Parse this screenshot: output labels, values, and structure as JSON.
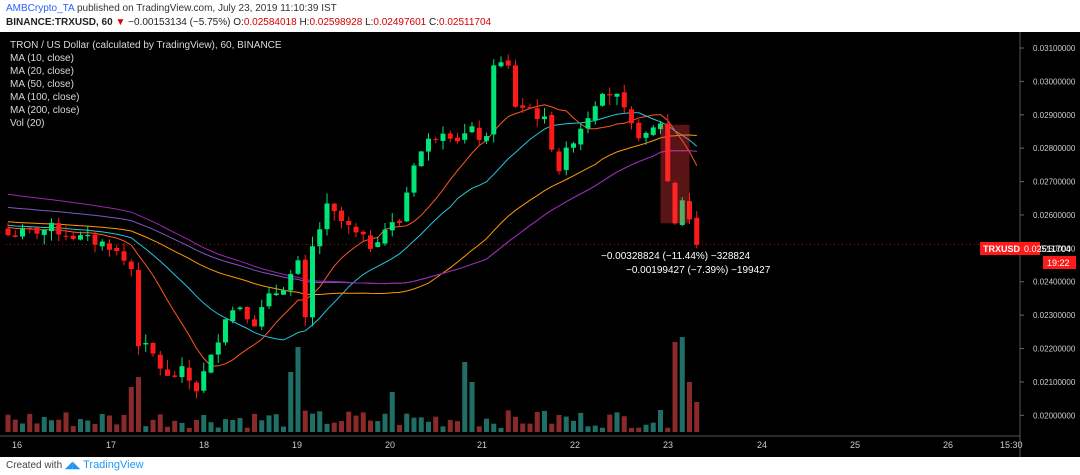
{
  "header": {
    "publisher": "AMBCrypto_TA",
    "published_text": "published on TradingView.com, July 23, 2019 11:10:39 IST",
    "symbol_line": "BINANCE:TRXUSD, 60",
    "change_arrow": "▼",
    "change_text": "−0.00153134 (−5.75%)",
    "o_label": "O:",
    "o_value": "0.02584018",
    "h_label": "H:",
    "h_value": "0.02598928",
    "l_label": "L:",
    "l_value": "0.02497601",
    "c_label": "C:",
    "c_value": "0.02511704"
  },
  "legend": [
    "TRON / US Dollar (calculated by TradingView), 60, BINANCE",
    "MA (10, close)",
    "MA (20, close)",
    "MA (50, close)",
    "MA (100, close)",
    "MA (200, close)",
    "Vol (20)"
  ],
  "annotations": {
    "measure1": "−0.00328824 (−11.44%) −328824",
    "measure2": "−0.00199427 (−7.39%) −199427"
  },
  "price_badge": {
    "symbol": "TRXUSD",
    "value": "0.02511704",
    "countdown": "19:22"
  },
  "footer": {
    "created_with": "Created with",
    "brand": "TradingView"
  },
  "colors": {
    "up": "#00e676",
    "down": "#ff1a1a",
    "vol_up": "#1f6f66",
    "vol_down": "#8a2a2a",
    "ma10": "#ff5722",
    "ma20": "#26c6da",
    "ma50": "#ff9800",
    "ma100": "#7e57c2",
    "ma200": "#9c27b0"
  },
  "chart_data": {
    "type": "candlestick",
    "symbol": "TRXUSD",
    "interval": "60",
    "ylim": [
      0.0195,
      0.0313
    ],
    "y_ticks": [
      "0.03100000",
      "0.03000000",
      "0.02900000",
      "0.02800000",
      "0.02700000",
      "0.02600000",
      "0.02500000",
      "0.02400000",
      "0.02300000",
      "0.02200000",
      "0.02100000",
      "0.02000000"
    ],
    "x_ticks": [
      "16",
      "17",
      "18",
      "19",
      "20",
      "21",
      "22",
      "23",
      "24",
      "25",
      "26",
      "15:30"
    ],
    "price_path": [
      [
        0,
        0.0254
      ],
      [
        6,
        0.0256
      ],
      [
        10,
        0.0253
      ],
      [
        14,
        0.0251
      ],
      [
        17,
        0.0244
      ],
      [
        18,
        0.0222
      ],
      [
        20,
        0.0218
      ],
      [
        22,
        0.0211
      ],
      [
        24,
        0.0213
      ],
      [
        26,
        0.0208
      ],
      [
        28,
        0.0217
      ],
      [
        30,
        0.023
      ],
      [
        32,
        0.0233
      ],
      [
        34,
        0.0228
      ],
      [
        36,
        0.0235
      ],
      [
        38,
        0.0239
      ],
      [
        40,
        0.0245
      ],
      [
        41,
        0.0228
      ],
      [
        42,
        0.025
      ],
      [
        44,
        0.0262
      ],
      [
        46,
        0.0258
      ],
      [
        48,
        0.0254
      ],
      [
        50,
        0.0251
      ],
      [
        52,
        0.0256
      ],
      [
        54,
        0.0258
      ],
      [
        56,
        0.0276
      ],
      [
        58,
        0.0282
      ],
      [
        60,
        0.0286
      ],
      [
        62,
        0.0283
      ],
      [
        64,
        0.0285
      ],
      [
        66,
        0.0282
      ],
      [
        67,
        0.0306
      ],
      [
        69,
        0.0304
      ],
      [
        70,
        0.0293
      ],
      [
        72,
        0.0292
      ],
      [
        74,
        0.0288
      ],
      [
        76,
        0.0274
      ],
      [
        78,
        0.0283
      ],
      [
        80,
        0.029
      ],
      [
        82,
        0.0298
      ],
      [
        84,
        0.0295
      ],
      [
        86,
        0.0286
      ],
      [
        88,
        0.0283
      ],
      [
        90,
        0.0288
      ],
      [
        91,
        0.027
      ],
      [
        92,
        0.0258
      ],
      [
        93,
        0.0265
      ],
      [
        94,
        0.0259
      ],
      [
        95,
        0.0251
      ]
    ],
    "moving_averages": [
      {
        "name": "MA (10, close)",
        "period": 10
      },
      {
        "name": "MA (20, close)",
        "period": 20
      },
      {
        "name": "MA (50, close)",
        "period": 50
      },
      {
        "name": "MA (100, close)",
        "period": 100
      },
      {
        "name": "MA (200, close)",
        "period": 200
      }
    ],
    "grid": false,
    "volume_series": "Vol (20)"
  }
}
